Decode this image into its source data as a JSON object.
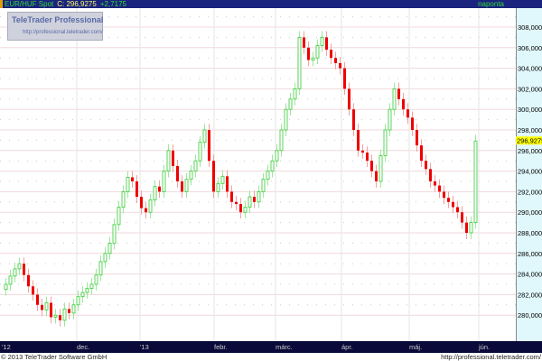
{
  "header": {
    "symbol": "EUR/HUF Spot",
    "last_label": "C: 296,9275",
    "change": "+2,7175",
    "period": "naponta"
  },
  "logo": {
    "title": "TeleTrader Professional",
    "url": "http://professional.teletrader.com/"
  },
  "footer": {
    "copyright": "© 2013 TeleTrader Software GmbH",
    "url": "http://professional.teletrader.com/"
  },
  "colors": {
    "up": "#33cc33",
    "down": "#ee0000",
    "last_price_bg": "#ffff00",
    "title_bg": "#1a237e",
    "axis_bg": "#e0f7fb"
  },
  "chart_data": {
    "type": "candlestick",
    "title": "",
    "y_ticks": [
      "308,0000",
      "306,0000",
      "304,0000",
      "302,0000",
      "300,0000",
      "298,0000",
      "296,0000",
      "294,0000",
      "292,0000",
      "290,0000",
      "288,0000",
      "286,0000",
      "284,0000",
      "282,0000",
      "280,0000"
    ],
    "x_ticks": [
      "'12",
      "dec.",
      "'13",
      "febr.",
      "márc.",
      "ápr.",
      "máj.",
      "jún."
    ],
    "ylim": [
      279,
      310
    ],
    "last_value_label": "296,9275",
    "grid": true,
    "close": [
      283.0,
      283.8,
      284.5,
      285.0,
      283.9,
      282.8,
      282.0,
      281.0,
      280.5,
      281.2,
      279.8,
      280.0,
      279.5,
      280.6,
      280.2,
      281.0,
      281.8,
      282.2,
      282.6,
      283.0,
      283.9,
      285.2,
      286.0,
      287.0,
      288.8,
      290.5,
      292.0,
      293.4,
      293.0,
      291.5,
      290.4,
      290.0,
      291.2,
      292.5,
      292.0,
      294.0,
      296.0,
      294.5,
      293.0,
      292.0,
      293.2,
      294.0,
      295.0,
      296.8,
      298.0,
      295.0,
      292.0,
      292.8,
      293.5,
      292.0,
      291.0,
      290.8,
      290.0,
      290.5,
      291.5,
      291.0,
      292.0,
      293.2,
      294.0,
      295.0,
      296.0,
      298.0,
      300.0,
      301.0,
      302.0,
      307.0,
      306.0,
      304.8,
      305.0,
      306.2,
      307.0,
      305.8,
      305.0,
      304.5,
      304.0,
      302.0,
      300.0,
      298.0,
      296.0,
      295.8,
      295.0,
      294.0,
      293.0,
      295.5,
      298.0,
      300.0,
      302.0,
      301.0,
      300.0,
      299.2,
      298.0,
      296.5,
      295.0,
      294.2,
      293.0,
      292.6,
      292.0,
      291.4,
      291.0,
      290.5,
      290.0,
      289.0,
      288.0,
      289.0,
      296.9275
    ]
  }
}
